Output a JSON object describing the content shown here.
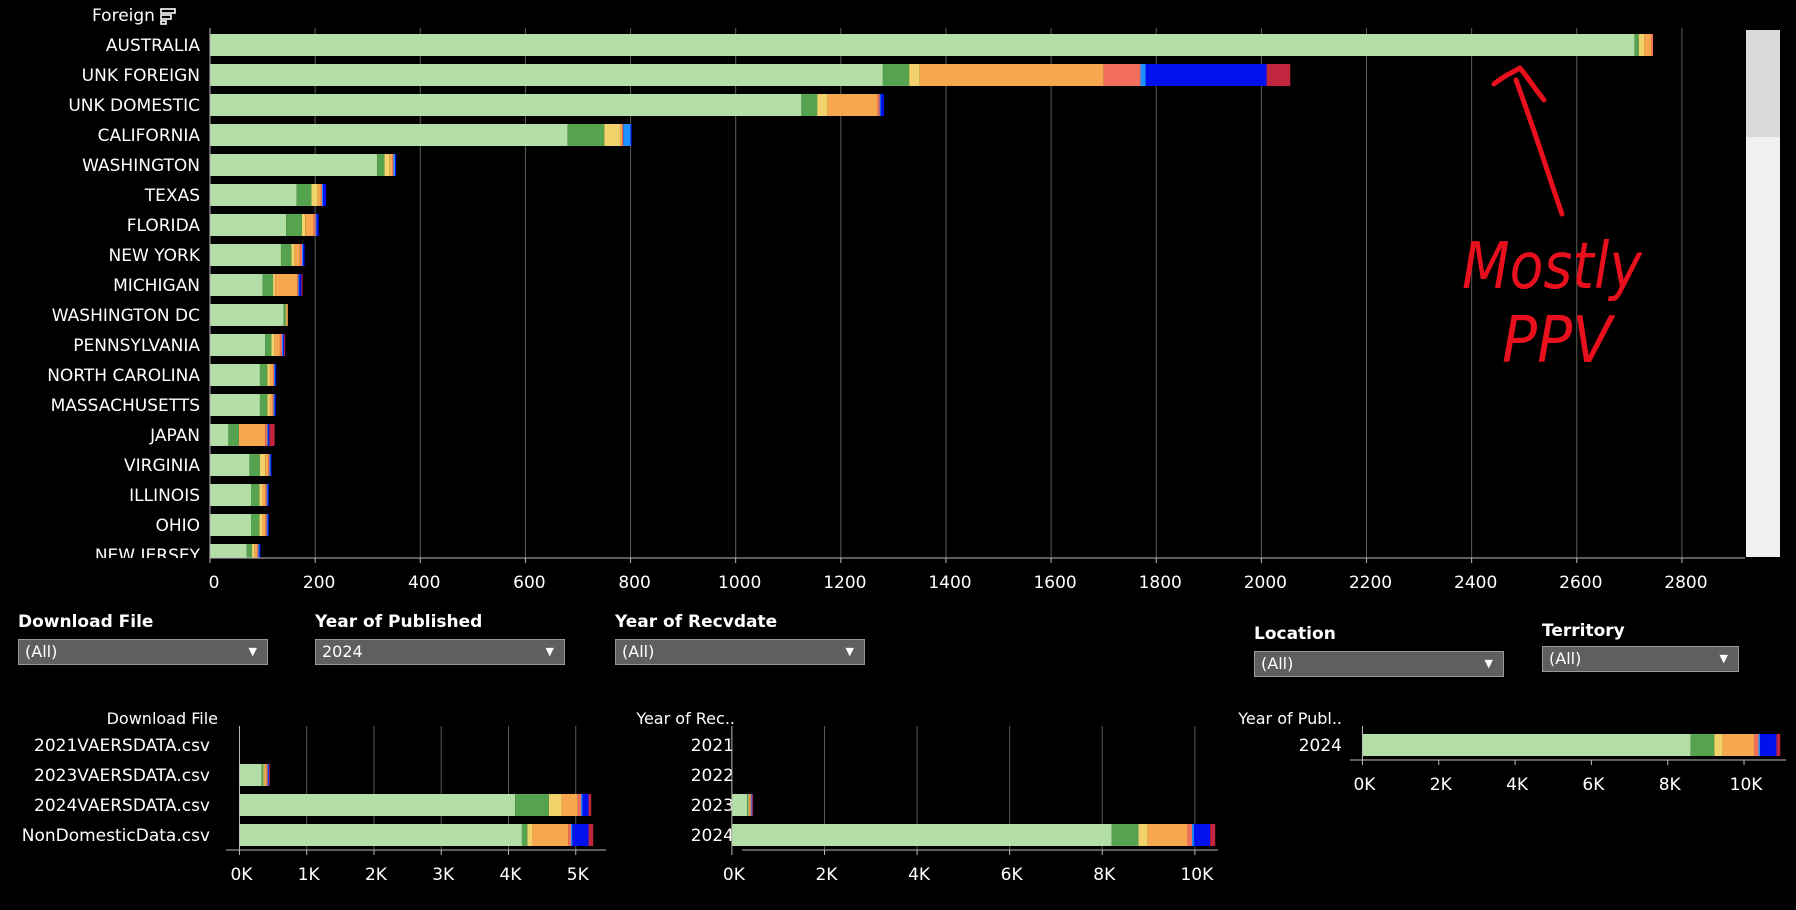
{
  "colors": {
    "background": "#000000",
    "segments": [
      "#b3dea6",
      "#55a24f",
      "#f2d36b",
      "#f7a84e",
      "#f46e5e",
      "#1e90ff",
      "#0011ee",
      "#c2253e",
      "#9a3fd0"
    ],
    "annotation": "#e8101c",
    "gridline": "#5c5c5c"
  },
  "main": {
    "header_title": "Foreign",
    "header_icon": "sort-icon"
  },
  "filters": [
    {
      "label": "Download File",
      "value": "(All)"
    },
    {
      "label": "Year of Published",
      "value": "2024"
    },
    {
      "label": "Year of Recvdate",
      "value": "(All)"
    },
    {
      "label": "Location",
      "value": "(All)"
    },
    {
      "label": "Territory",
      "value": "(All)"
    }
  ],
  "annotation": {
    "line1": "Mostly",
    "line2": "PPV"
  },
  "chart_data": [
    {
      "type": "bar",
      "orientation": "horizontal",
      "stacked": true,
      "title": "",
      "row_header": "Foreign",
      "xlim": [
        0,
        2920
      ],
      "xticks": [
        0,
        200,
        400,
        600,
        800,
        1000,
        1200,
        1400,
        1600,
        1800,
        2000,
        2200,
        2400,
        2600,
        2800
      ],
      "tick_labels": [
        "0",
        "200",
        "400",
        "600",
        "800",
        "1000",
        "1200",
        "1400",
        "1600",
        "1800",
        "2000",
        "2200",
        "2400",
        "2600",
        "2800"
      ],
      "grid": true,
      "categories": [
        "AUSTRALIA",
        "UNK FOREIGN",
        "UNK DOMESTIC",
        "CALIFORNIA",
        "WASHINGTON",
        "TEXAS",
        "FLORIDA",
        "NEW YORK",
        "MICHIGAN",
        "WASHINGTON DC",
        "PENNSYLVANIA",
        "NORTH CAROLINA",
        "MASSACHUSETTS",
        "JAPAN",
        "VIRGINIA",
        "ILLINOIS",
        "OHIO",
        "NEW JERSEY"
      ],
      "segments": [
        [
          2710,
          8,
          10,
          14,
          3
        ],
        [
          1280,
          50,
          20,
          350,
          70,
          10,
          230,
          45
        ],
        [
          1125,
          30,
          20,
          95,
          4,
          2,
          6
        ],
        [
          680,
          70,
          30,
          4,
          2,
          14,
          2
        ],
        [
          318,
          14,
          10,
          5,
          2,
          3,
          2
        ],
        [
          165,
          28,
          12,
          6,
          2,
          2,
          6
        ],
        [
          145,
          30,
          6,
          16,
          4,
          2,
          4
        ],
        [
          135,
          20,
          6,
          10,
          4,
          2,
          3
        ],
        [
          100,
          20,
          4,
          42,
          2,
          2,
          4,
          2
        ],
        [
          140,
          4,
          2,
          2
        ],
        [
          105,
          12,
          6,
          10,
          4,
          2,
          2,
          2
        ],
        [
          95,
          14,
          5,
          6,
          2,
          2,
          2
        ],
        [
          95,
          14,
          5,
          5,
          2,
          2,
          2
        ],
        [
          35,
          20,
          0,
          50,
          4,
          2,
          2,
          10
        ],
        [
          75,
          20,
          10,
          6,
          2,
          2,
          2
        ],
        [
          78,
          16,
          6,
          6,
          2,
          2,
          2
        ],
        [
          78,
          16,
          6,
          6,
          2,
          2,
          2
        ],
        [
          70,
          10,
          5,
          5,
          2,
          2,
          2
        ]
      ]
    },
    {
      "type": "bar",
      "orientation": "horizontal",
      "stacked": true,
      "title": "",
      "row_header": "Download File",
      "xlim": [
        -200,
        5450
      ],
      "xticks": [
        0,
        1000,
        2000,
        3000,
        4000,
        5000
      ],
      "tick_labels": [
        "0K",
        "1K",
        "2K",
        "3K",
        "4K",
        "5K"
      ],
      "grid": true,
      "categories": [
        "2021VAERSDATA.csv",
        "2023VAERSDATA.csv",
        "2024VAERSDATA.csv",
        "NonDomesticData.csv"
      ],
      "segments": [
        [
          0
        ],
        [
          330,
          25,
          20,
          30,
          15,
          10,
          10,
          10
        ],
        [
          4100,
          500,
          190,
          240,
          50,
          20,
          90,
          40
        ],
        [
          4200,
          80,
          70,
          540,
          40,
          20,
          240,
          70
        ]
      ]
    },
    {
      "type": "bar",
      "orientation": "horizontal",
      "stacked": true,
      "title": "",
      "row_header": "Year of Rec..",
      "xlim": [
        -300,
        10500
      ],
      "xticks": [
        0,
        2000,
        4000,
        6000,
        8000,
        10000
      ],
      "tick_labels": [
        "0K",
        "2K",
        "4K",
        "6K",
        "8K",
        "10K"
      ],
      "grid": true,
      "categories": [
        "2021",
        "2022",
        "2023",
        "2024"
      ],
      "segments": [
        [
          0
        ],
        [
          0
        ],
        [
          330,
          25,
          20,
          30,
          15,
          10,
          10,
          10
        ],
        [
          8200,
          580,
          200,
          860,
          100,
          40,
          350,
          110
        ]
      ]
    },
    {
      "type": "bar",
      "orientation": "horizontal",
      "stacked": true,
      "title": "",
      "row_header": "Year of Publ..",
      "xlim": [
        -300,
        11100
      ],
      "xticks": [
        0,
        2000,
        4000,
        6000,
        8000,
        10000
      ],
      "tick_labels": [
        "0K",
        "2K",
        "4K",
        "6K",
        "8K",
        "10K"
      ],
      "grid": false,
      "categories": [
        "2024"
      ],
      "segments": [
        [
          8600,
          620,
          220,
          830,
          110,
          40,
          430,
          100
        ]
      ]
    }
  ]
}
